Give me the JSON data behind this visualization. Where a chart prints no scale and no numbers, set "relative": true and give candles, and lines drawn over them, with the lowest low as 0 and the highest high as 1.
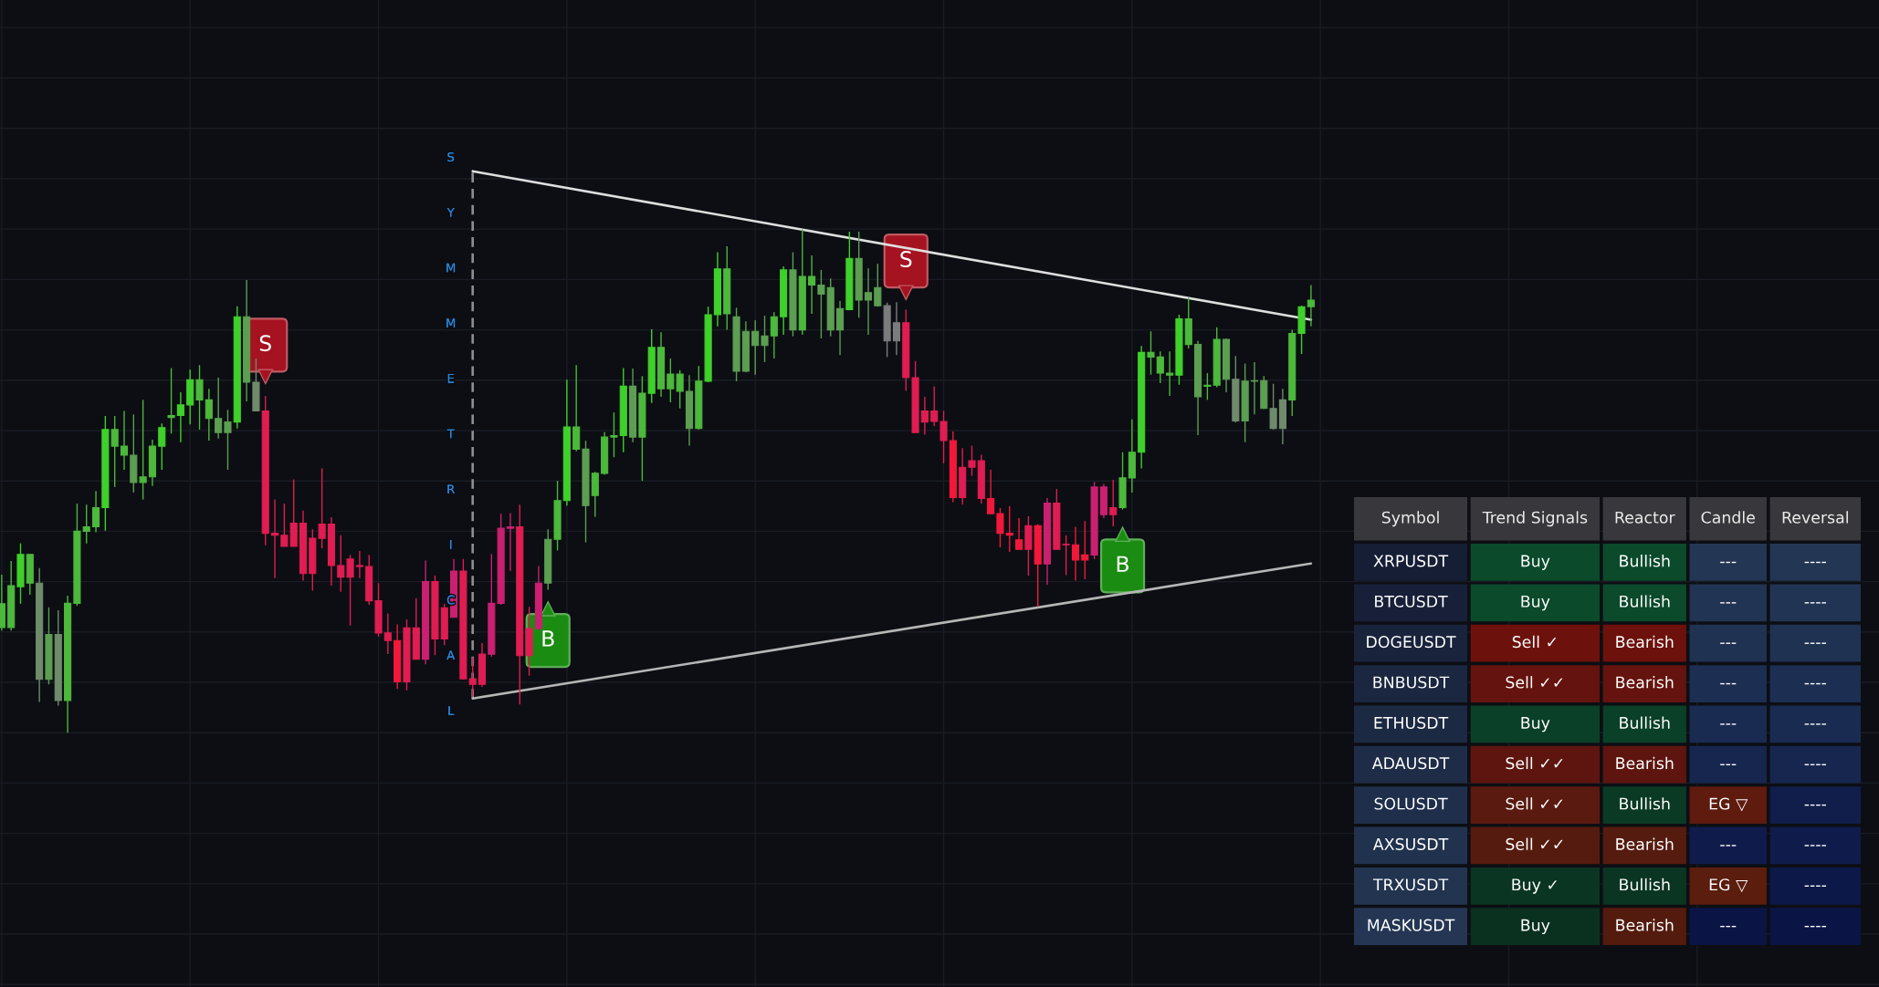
{
  "chart_data": [
    {
      "type": "candlestick",
      "relative": true,
      "grid": true,
      "categories": [
        null,
        null,
        null,
        null,
        null,
        null,
        null,
        null,
        null,
        null,
        null,
        null,
        null,
        null,
        null,
        null,
        null,
        null,
        null,
        null,
        null,
        null,
        null,
        null,
        null,
        null,
        null,
        null,
        null,
        null,
        null,
        null,
        null,
        null,
        null,
        null,
        null,
        null,
        null,
        null,
        null,
        null,
        null,
        null,
        null,
        null,
        null,
        null,
        null,
        null,
        null,
        null,
        null,
        null,
        null,
        null,
        null,
        null,
        null,
        null,
        null,
        null,
        null,
        null,
        null,
        null,
        null,
        null,
        null,
        null,
        null,
        null,
        null,
        null,
        null,
        null,
        null,
        null,
        null,
        null,
        null,
        null,
        null,
        null,
        null,
        null,
        null,
        null,
        null,
        null,
        null,
        null,
        null,
        null,
        null,
        null,
        null,
        null,
        null,
        null,
        null,
        null,
        null,
        null,
        null,
        null,
        null,
        null,
        null,
        null,
        null,
        null,
        null,
        null,
        null,
        null,
        null,
        null,
        null,
        null,
        null,
        null,
        null,
        null,
        null,
        null,
        null,
        null,
        null,
        null,
        null,
        null,
        null,
        null,
        null,
        null,
        null,
        null,
        null,
        null
      ],
      "ohlc": [
        [
          0.209,
          0.314,
          0.203,
          0.256
        ],
        [
          0.209,
          0.341,
          0.203,
          0.292
        ],
        [
          0.29,
          0.376,
          0.256,
          0.354
        ],
        [
          0.297,
          0.354,
          0.274,
          0.354
        ],
        [
          0.106,
          0.327,
          0.061,
          0.297
        ],
        [
          0.106,
          0.249,
          0.096,
          0.195
        ],
        [
          0.064,
          0.243,
          0.054,
          0.195
        ],
        [
          0.064,
          0.272,
          0.0,
          0.257
        ],
        [
          0.257,
          0.455,
          0.252,
          0.4
        ],
        [
          0.4,
          0.453,
          0.376,
          0.409
        ],
        [
          0.409,
          0.48,
          0.398,
          0.447
        ],
        [
          0.447,
          0.629,
          0.401,
          0.602
        ],
        [
          0.569,
          0.629,
          0.488,
          0.602
        ],
        [
          0.551,
          0.639,
          0.522,
          0.569
        ],
        [
          0.497,
          0.632,
          0.477,
          0.551
        ],
        [
          0.497,
          0.661,
          0.463,
          0.508
        ],
        [
          0.508,
          0.582,
          0.49,
          0.569
        ],
        [
          0.569,
          0.614,
          0.522,
          0.606
        ],
        [
          0.626,
          0.724,
          0.594,
          0.63
        ],
        [
          0.63,
          0.676,
          0.577,
          0.651
        ],
        [
          0.651,
          0.721,
          0.612,
          0.701
        ],
        [
          0.661,
          0.73,
          0.602,
          0.701
        ],
        [
          0.624,
          0.683,
          0.58,
          0.661
        ],
        [
          0.596,
          0.705,
          0.584,
          0.624
        ],
        [
          0.596,
          0.641,
          0.522,
          0.617
        ],
        [
          0.617,
          0.847,
          0.604,
          0.826
        ],
        [
          0.696,
          0.899,
          0.658,
          0.826
        ],
        [
          0.639,
          0.743,
          0.639,
          0.696
        ],
        [
          0.639,
          0.669,
          0.372,
          0.396
        ],
        [
          0.396,
          0.463,
          0.307,
          0.392
        ],
        [
          0.392,
          0.455,
          0.37,
          0.37
        ],
        [
          0.416,
          0.503,
          0.37,
          0.37
        ],
        [
          0.416,
          0.441,
          0.302,
          0.316
        ],
        [
          0.386,
          0.404,
          0.282,
          0.316
        ],
        [
          0.414,
          0.525,
          0.366,
          0.386
        ],
        [
          0.414,
          0.428,
          0.292,
          0.332
        ],
        [
          0.332,
          0.392,
          0.28,
          0.309
        ],
        [
          0.345,
          0.353,
          0.213,
          0.309
        ],
        [
          0.332,
          0.361,
          0.307,
          0.33
        ],
        [
          0.33,
          0.353,
          0.254,
          0.262
        ],
        [
          0.262,
          0.297,
          0.191,
          0.198
        ],
        [
          0.198,
          0.237,
          0.156,
          0.183
        ],
        [
          0.183,
          0.215,
          0.087,
          0.101
        ],
        [
          0.208,
          0.225,
          0.084,
          0.101
        ],
        [
          0.208,
          0.267,
          0.146,
          0.146
        ],
        [
          0.3,
          0.342,
          0.136,
          0.146
        ],
        [
          0.3,
          0.312,
          0.154,
          0.186
        ],
        [
          0.248,
          0.256,
          0.174,
          0.186
        ],
        [
          0.321,
          0.345,
          0.229,
          0.229
        ],
        [
          0.321,
          0.345,
          0.106,
          0.107
        ],
        [
          0.107,
          0.15,
          0.072,
          0.096
        ],
        [
          0.156,
          0.178,
          0.091,
          0.096
        ],
        [
          0.257,
          0.355,
          0.151,
          0.156
        ],
        [
          0.406,
          0.435,
          0.254,
          0.257
        ],
        [
          0.409,
          0.436,
          0.321,
          0.406
        ],
        [
          0.409,
          0.453,
          0.056,
          0.153
        ],
        [
          0.207,
          0.25,
          0.113,
          0.153
        ],
        [
          0.297,
          0.331,
          0.203,
          0.207
        ],
        [
          0.297,
          0.404,
          0.284,
          0.384
        ],
        [
          0.384,
          0.5,
          0.362,
          0.461
        ],
        [
          0.461,
          0.701,
          0.451,
          0.607
        ],
        [
          0.563,
          0.73,
          0.559,
          0.607
        ],
        [
          0.451,
          0.58,
          0.378,
          0.563
        ],
        [
          0.471,
          0.518,
          0.429,
          0.515
        ],
        [
          0.515,
          0.597,
          0.512,
          0.587
        ],
        [
          0.587,
          0.636,
          0.547,
          0.59
        ],
        [
          0.59,
          0.724,
          0.557,
          0.688
        ],
        [
          0.587,
          0.723,
          0.577,
          0.688
        ],
        [
          0.587,
          0.708,
          0.5,
          0.674
        ],
        [
          0.674,
          0.801,
          0.655,
          0.765
        ],
        [
          0.683,
          0.795,
          0.667,
          0.765
        ],
        [
          0.683,
          0.743,
          0.656,
          0.712
        ],
        [
          0.678,
          0.72,
          0.644,
          0.712
        ],
        [
          0.604,
          0.71,
          0.57,
          0.678
        ],
        [
          0.604,
          0.728,
          0.602,
          0.698
        ],
        [
          0.698,
          0.846,
          0.696,
          0.83
        ],
        [
          0.83,
          0.954,
          0.807,
          0.921
        ],
        [
          0.832,
          0.966,
          0.8,
          0.921
        ],
        [
          0.718,
          0.844,
          0.698,
          0.826
        ],
        [
          0.718,
          0.817,
          0.716,
          0.797
        ],
        [
          0.769,
          0.819,
          0.711,
          0.797
        ],
        [
          0.769,
          0.828,
          0.736,
          0.788
        ],
        [
          0.788,
          0.835,
          0.743,
          0.826
        ],
        [
          0.826,
          0.926,
          0.79,
          0.919
        ],
        [
          0.8,
          0.954,
          0.787,
          0.919
        ],
        [
          0.8,
          1.0,
          0.79,
          0.906
        ],
        [
          0.889,
          0.948,
          0.832,
          0.906
        ],
        [
          0.871,
          0.919,
          0.783,
          0.889
        ],
        [
          0.8,
          0.902,
          0.787,
          0.884
        ],
        [
          0.8,
          0.857,
          0.75,
          0.842
        ],
        [
          0.84,
          0.995,
          0.839,
          0.942
        ],
        [
          0.859,
          0.995,
          0.824,
          0.942
        ],
        [
          0.859,
          0.922,
          0.79,
          0.874
        ],
        [
          0.848,
          0.931,
          0.846,
          0.884
        ],
        [
          0.848,
          0.854,
          0.746,
          0.778
        ],
        [
          0.814,
          0.855,
          0.75,
          0.778
        ],
        [
          0.814,
          0.84,
          0.679,
          0.705
        ],
        [
          0.705,
          0.738,
          0.596,
          0.596
        ],
        [
          0.639,
          0.667,
          0.592,
          0.617
        ],
        [
          0.639,
          0.688,
          0.609,
          0.618
        ],
        [
          0.618,
          0.639,
          0.535,
          0.58
        ],
        [
          0.58,
          0.598,
          0.458,
          0.467
        ],
        [
          0.527,
          0.565,
          0.453,
          0.467
        ],
        [
          0.54,
          0.57,
          0.51,
          0.527
        ],
        [
          0.54,
          0.552,
          0.455,
          0.465
        ],
        [
          0.465,
          0.522,
          0.435,
          0.435
        ],
        [
          0.435,
          0.446,
          0.368,
          0.396
        ],
        [
          0.396,
          0.45,
          0.359,
          0.392
        ],
        [
          0.383,
          0.426,
          0.364,
          0.364
        ],
        [
          0.411,
          0.43,
          0.312,
          0.364
        ],
        [
          0.411,
          0.414,
          0.25,
          0.335
        ],
        [
          0.456,
          0.466,
          0.294,
          0.335
        ],
        [
          0.456,
          0.484,
          0.364,
          0.364
        ],
        [
          0.374,
          0.392,
          0.313,
          0.373
        ],
        [
          0.373,
          0.409,
          0.302,
          0.343
        ],
        [
          0.353,
          0.42,
          0.305,
          0.343
        ],
        [
          0.488,
          0.498,
          0.345,
          0.353
        ],
        [
          0.488,
          0.494,
          0.426,
          0.433
        ],
        [
          0.447,
          0.502,
          0.41,
          0.433
        ],
        [
          0.447,
          0.557,
          0.443,
          0.506
        ],
        [
          0.506,
          0.622,
          0.477,
          0.557
        ],
        [
          0.557,
          0.768,
          0.525,
          0.755
        ],
        [
          0.746,
          0.797,
          0.711,
          0.755
        ],
        [
          0.714,
          0.757,
          0.694,
          0.746
        ],
        [
          0.71,
          0.757,
          0.669,
          0.714
        ],
        [
          0.71,
          0.83,
          0.691,
          0.822
        ],
        [
          0.771,
          0.864,
          0.763,
          0.822
        ],
        [
          0.667,
          0.778,
          0.591,
          0.771
        ],
        [
          0.688,
          0.714,
          0.661,
          0.69
        ],
        [
          0.69,
          0.805,
          0.686,
          0.781
        ],
        [
          0.702,
          0.783,
          0.676,
          0.781
        ],
        [
          0.619,
          0.748,
          0.616,
          0.702
        ],
        [
          0.619,
          0.733,
          0.577,
          0.698
        ],
        [
          0.698,
          0.736,
          0.632,
          0.699
        ],
        [
          0.644,
          0.708,
          0.643,
          0.699
        ],
        [
          0.604,
          0.693,
          0.602,
          0.644
        ],
        [
          0.604,
          0.683,
          0.573,
          0.661
        ],
        [
          0.661,
          0.8,
          0.629,
          0.793
        ],
        [
          0.793,
          0.848,
          0.752,
          0.846
        ],
        [
          0.846,
          0.889,
          0.807,
          0.859
        ]
      ],
      "colors": [
        "#4cb83c",
        "#4cb83c",
        "#3fd02b",
        "#4cb83c",
        "#6f8b6c",
        "#5c9e52",
        "#6f8b6c",
        "#4cb83c",
        "#4cb83c",
        "#4cb83c",
        "#4cb83c",
        "#3fd02b",
        "#4cb83c",
        "#4cb83c",
        "#5c9e52",
        "#4cb83c",
        "#4cb83c",
        "#3fd02b",
        "#4cb83c",
        "#3fd02b",
        "#3fd02b",
        "#4cb83c",
        "#4cb83c",
        "#5c9e52",
        "#5c9e52",
        "#3fd02b",
        "#5c9e52",
        "#6f8b6c",
        "#df1d52",
        "#df1d52",
        "#df1d52",
        "#df1d52",
        "#df1d52",
        "#df1d52",
        "#df1d52",
        "#df1d52",
        "#df1d52",
        "#df1d52",
        "#df1d52",
        "#df1d52",
        "#df1d52",
        "#df1d52",
        "#f2183b",
        "#df1d52",
        "#df1d52",
        "#c92070",
        "#df1d52",
        "#df1d52",
        "#c92070",
        "#df1d52",
        "#df1d52",
        "#df1d52",
        "#c92070",
        "#c92070",
        "#c92070",
        "#df1d52",
        "#df1d52",
        "#c92070",
        "#5c9e52",
        "#4cb83c",
        "#3fd02b",
        "#4cb83c",
        "#5c9e52",
        "#4cb83c",
        "#4cb83c",
        "#4cb83c",
        "#3fd02b",
        "#5c9e52",
        "#4cb83c",
        "#3fd02b",
        "#4cb83c",
        "#4cb83c",
        "#4cb83c",
        "#5c9e52",
        "#4cb83c",
        "#3fd02b",
        "#3fd02b",
        "#4cb83c",
        "#5c9e52",
        "#5c9e52",
        "#5c9e52",
        "#5c9e52",
        "#4cb83c",
        "#3fd02b",
        "#5c9e52",
        "#4cb83c",
        "#4cb83c",
        "#5c9e52",
        "#5c9e52",
        "#5c9e52",
        "#3fd02b",
        "#5c9e52",
        "#5c9e52",
        "#5c9e52",
        "#7a7c7e",
        "#7a7c7e",
        "#df1d52",
        "#df1d52",
        "#df1d52",
        "#df1d52",
        "#df1d52",
        "#f2183b",
        "#df1d52",
        "#df1d52",
        "#df1d52",
        "#f2183b",
        "#f2183b",
        "#f2183b",
        "#f2183b",
        "#df1d52",
        "#f2183b",
        "#c92070",
        "#df1d52",
        "#df1d52",
        "#f2183b",
        "#f2183b",
        "#c92070",
        "#c92070",
        "#df1d52",
        "#4cb83c",
        "#4cb83c",
        "#3fd02b",
        "#4cb83c",
        "#4cb83c",
        "#4cb83c",
        "#3fd02b",
        "#4cb83c",
        "#5c9e52",
        "#4cb83c",
        "#4cb83c",
        "#5c9e52",
        "#6f8b6c",
        "#5c9e52",
        "#5c9e52",
        "#5c9e52",
        "#6f8b6c",
        "#6f8b6c",
        "#4cb83c",
        "#3fd02b",
        "#4cb83c"
      ],
      "series": [
        {
          "type": "line",
          "color": "#dedede",
          "values": [
            null,
            null,
            null,
            null,
            null,
            null,
            null,
            null,
            null,
            null,
            null,
            null,
            null,
            null,
            null,
            null,
            null,
            null,
            null,
            null,
            null,
            null,
            null,
            null,
            null,
            null,
            null,
            null,
            null,
            null,
            null,
            null,
            null,
            null,
            null,
            null,
            null,
            null,
            null,
            null,
            null,
            null,
            null,
            null,
            null,
            null,
            null,
            null,
            null,
            null,
            1.115,
            null,
            null,
            null,
            null,
            null,
            null,
            null,
            null,
            null,
            null,
            null,
            null,
            null,
            null,
            null,
            null,
            null,
            null,
            null,
            null,
            null,
            null,
            null,
            null,
            null,
            null,
            null,
            null,
            null,
            null,
            null,
            null,
            null,
            null,
            null,
            null,
            null,
            null,
            null,
            null,
            null,
            null,
            null,
            null,
            null,
            null,
            null,
            null,
            null,
            null,
            null,
            null,
            null,
            null,
            null,
            null,
            null,
            null,
            null,
            null,
            null,
            null,
            null,
            null,
            null,
            null,
            null,
            null,
            null,
            null,
            null,
            null,
            null,
            null,
            null,
            null,
            null,
            null,
            null,
            null,
            null,
            null,
            null,
            null,
            null,
            null,
            null,
            null,
            0.82
          ]
        },
        {
          "type": "line",
          "color": "#b6b6b6",
          "values": [
            null,
            null,
            null,
            null,
            null,
            null,
            null,
            null,
            null,
            null,
            null,
            null,
            null,
            null,
            null,
            null,
            null,
            null,
            null,
            null,
            null,
            null,
            null,
            null,
            null,
            null,
            null,
            null,
            null,
            null,
            null,
            null,
            null,
            null,
            null,
            null,
            null,
            null,
            null,
            null,
            null,
            null,
            null,
            null,
            null,
            null,
            null,
            null,
            null,
            null,
            0.068,
            null,
            null,
            null,
            null,
            null,
            null,
            null,
            null,
            null,
            null,
            null,
            null,
            null,
            null,
            null,
            null,
            null,
            null,
            null,
            null,
            null,
            null,
            null,
            null,
            null,
            null,
            null,
            null,
            null,
            null,
            null,
            null,
            null,
            null,
            null,
            null,
            null,
            null,
            null,
            null,
            null,
            null,
            null,
            null,
            null,
            null,
            null,
            null,
            null,
            null,
            null,
            null,
            null,
            null,
            null,
            null,
            null,
            null,
            null,
            null,
            null,
            null,
            null,
            null,
            null,
            null,
            null,
            null,
            null,
            null,
            null,
            null,
            null,
            null,
            null,
            null,
            null,
            null,
            null,
            null,
            null,
            null,
            null,
            null,
            null,
            null,
            null,
            null,
            0.336
          ]
        },
        {
          "type": "scatter",
          "name": "S",
          "color": "#a51220",
          "values": [
            null,
            null,
            null,
            null,
            null,
            null,
            null,
            null,
            null,
            null,
            null,
            null,
            null,
            null,
            null,
            null,
            null,
            null,
            null,
            null,
            null,
            null,
            null,
            null,
            null,
            null,
            null,
            null,
            0.707,
            null,
            null,
            null,
            null,
            null,
            null,
            null,
            null,
            null,
            null,
            null,
            null,
            null,
            null,
            null,
            null,
            null,
            null,
            null,
            null,
            null,
            null,
            null,
            null,
            null,
            null,
            null,
            null,
            null,
            null,
            null,
            null,
            null,
            null,
            null,
            null,
            null,
            null,
            null,
            null,
            null,
            null,
            null,
            null,
            null,
            null,
            null,
            null,
            null,
            null,
            null,
            null,
            null,
            null,
            null,
            null,
            null,
            null,
            null,
            null,
            null,
            null,
            null,
            null,
            null,
            null,
            null,
            0.874,
            null,
            null,
            null,
            null,
            null,
            null,
            null,
            null,
            null,
            null,
            null,
            null,
            null,
            null,
            null,
            null,
            null,
            null,
            null,
            null,
            null,
            null,
            null,
            null,
            null,
            null,
            null,
            null,
            null,
            null,
            null,
            null,
            null,
            null,
            null,
            null,
            null,
            null,
            null,
            null,
            null,
            null,
            null
          ]
        },
        {
          "type": "scatter",
          "name": "B",
          "color": "#1b8c12",
          "values": [
            null,
            null,
            null,
            null,
            null,
            null,
            null,
            null,
            null,
            null,
            null,
            null,
            null,
            null,
            null,
            null,
            null,
            null,
            null,
            null,
            null,
            null,
            null,
            null,
            null,
            null,
            null,
            null,
            null,
            null,
            null,
            null,
            null,
            null,
            null,
            null,
            null,
            null,
            null,
            null,
            null,
            null,
            null,
            null,
            null,
            null,
            null,
            null,
            null,
            null,
            null,
            null,
            null,
            null,
            null,
            null,
            null,
            null,
            0.246,
            null,
            null,
            null,
            null,
            null,
            null,
            null,
            null,
            null,
            null,
            null,
            null,
            null,
            null,
            null,
            null,
            null,
            null,
            null,
            null,
            null,
            null,
            null,
            null,
            null,
            null,
            null,
            null,
            null,
            null,
            null,
            null,
            null,
            null,
            null,
            null,
            null,
            null,
            null,
            null,
            null,
            null,
            null,
            null,
            null,
            null,
            null,
            null,
            null,
            null,
            null,
            null,
            null,
            null,
            null,
            null,
            null,
            null,
            null,
            null,
            0.394,
            null,
            null,
            null,
            null,
            null,
            null,
            null,
            null,
            null,
            null,
            null,
            null,
            null,
            null,
            null,
            null,
            null,
            null,
            null,
            null
          ]
        }
      ],
      "annotations": [
        "SYMMETRICAL"
      ]
    },
    {
      "type": "other",
      "categories": [
        "Symbol",
        "Trend Signals",
        "Reactor",
        "Candle",
        "Reversal"
      ],
      "annotations": [
        "XRPUSDT",
        "Buy",
        "Bullish",
        "---",
        "----",
        "BTCUSDT",
        "Buy",
        "Bullish",
        "---",
        "----",
        "DOGEUSDT",
        "Sell ✓",
        "Bearish",
        "---",
        "----",
        "BNBUSDT",
        "Sell ✓✓",
        "Bearish",
        "---",
        "----",
        "ETHUSDT",
        "Buy",
        "Bullish",
        "---",
        "----",
        "ADAUSDT",
        "Sell ✓✓",
        "Bearish",
        "---",
        "----",
        "SOLUSDT",
        "Sell ✓✓",
        "Bullish",
        "EG ▽",
        "----",
        "AXSUSDT",
        "Sell ✓✓",
        "Bearish",
        "---",
        "----",
        "TRXUSDT",
        "Buy ✓",
        "Bullish",
        "EG ▽",
        "----",
        "MASKUSDT",
        "Buy",
        "Bearish",
        "---",
        "----"
      ],
      "colors": [
        "#38383c",
        "#38383c",
        "#38383c",
        "#38383c",
        "#38383c",
        "#151e35",
        "#0b4a2b",
        "#0b4a2b",
        "#233654",
        "#233654",
        "#172038",
        "#0b4a2b",
        "#0b4a2b",
        "#213453",
        "#213453",
        "#19233c",
        "#6d110c",
        "#6d110c",
        "#1f3252",
        "#1f3252",
        "#1b2640",
        "#65130e",
        "#65130e",
        "#1c2e52",
        "#1c2e52",
        "#1c2943",
        "#0b4028",
        "#0b4028",
        "#1a2b51",
        "#1a2b51",
        "#1e2c47",
        "#5e150f",
        "#5e150f",
        "#16264f",
        "#16264f",
        "#1f2f4b",
        "#5a1a0f",
        "#0b3a24",
        "#5e1b0e",
        "#111e4c",
        "#21324e",
        "#561b0f",
        "#561b0f",
        "#0f1c4b",
        "#0f1c4b",
        "#223450",
        "#0b3523",
        "#0b3523",
        "#5a1d0e",
        "#0c1848",
        "#243653",
        "#0a3020",
        "#531b0e",
        "#0a1546",
        "#0a1546"
      ]
    }
  ]
}
